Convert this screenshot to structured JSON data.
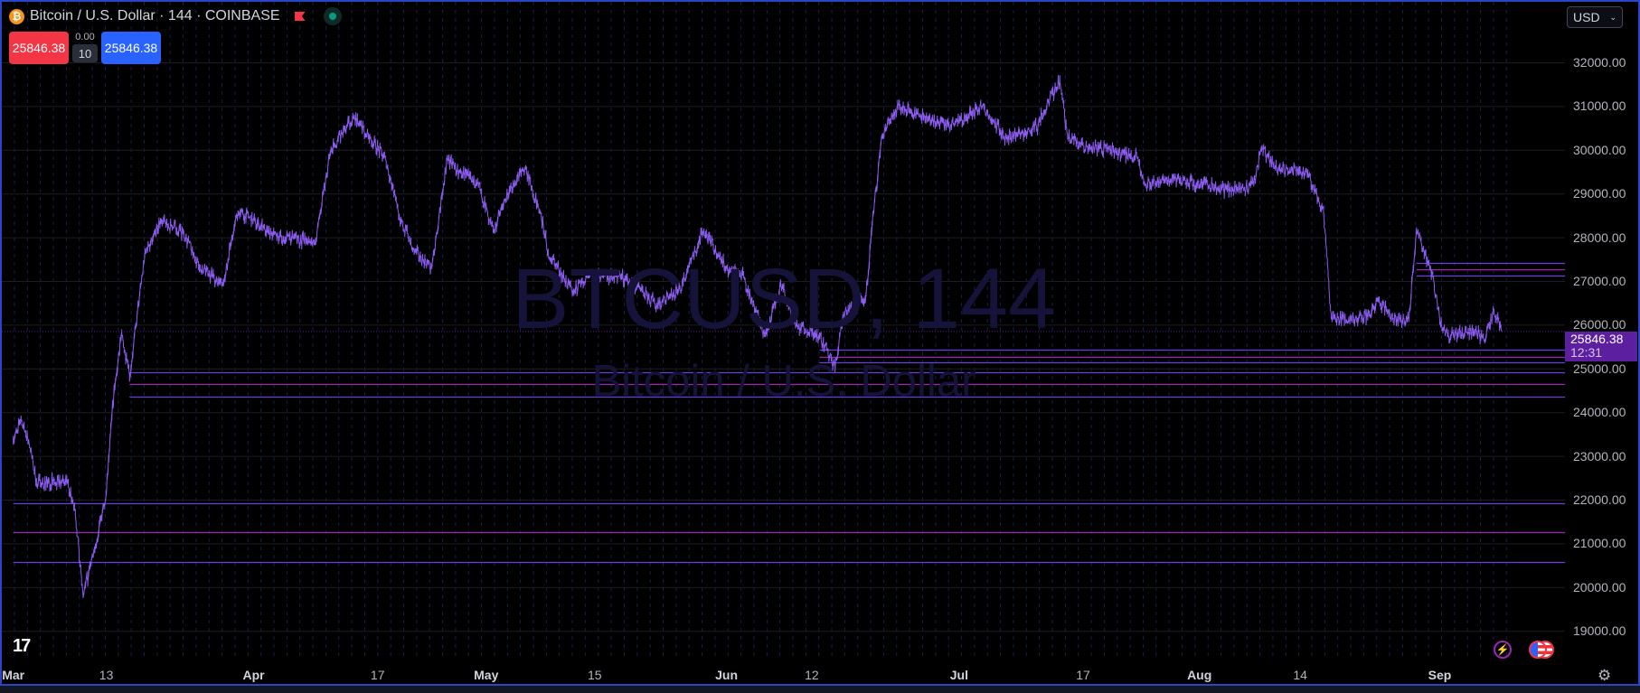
{
  "header": {
    "title": "Bitcoin / U.S. Dollar · 144 · COINBASE",
    "coin_icon": "bitcoin-icon",
    "flag_icon": "flag-icon",
    "status_icon": "market-open-dot-icon"
  },
  "trade": {
    "sell_price": "25846.38",
    "spread": "0.00",
    "quantity": "10",
    "buy_price": "25846.38"
  },
  "currency_selector": {
    "value": "USD"
  },
  "watermark": {
    "symbol": "BTCUSD, 144",
    "description": "Bitcoin / U.S. Dollar"
  },
  "last_price_tag": {
    "price": "25846.38",
    "countdown": "12:31"
  },
  "colors": {
    "line": "#8c5cf0",
    "level_purple": "#6a3fe0",
    "level_magenta": "#9c27b0",
    "background": "#000000",
    "border": "#2846c8",
    "tag": "#5b1f9f"
  },
  "chart_data": {
    "type": "line",
    "symbol": "BTCUSD",
    "interval": "144",
    "ylim": [
      18500,
      32500
    ],
    "y_ticks": [
      "32000.00",
      "31000.00",
      "30000.00",
      "29000.00",
      "28000.00",
      "27000.00",
      "26000.00",
      "25000.00",
      "24000.00",
      "23000.00",
      "22000.00",
      "21000.00",
      "20000.00",
      "19000.00"
    ],
    "x_ticks": [
      {
        "label": "Mar",
        "date": "03-01",
        "month": true
      },
      {
        "label": "13",
        "date": "03-13"
      },
      {
        "label": "Apr",
        "date": "04-01",
        "month": true
      },
      {
        "label": "17",
        "date": "04-17"
      },
      {
        "label": "May",
        "date": "05-01",
        "month": true
      },
      {
        "label": "15",
        "date": "05-15"
      },
      {
        "label": "Jun",
        "date": "06-01",
        "month": true
      },
      {
        "label": "12",
        "date": "06-12"
      },
      {
        "label": "Jul",
        "date": "07-01",
        "month": true
      },
      {
        "label": "17",
        "date": "07-17"
      },
      {
        "label": "Aug",
        "date": "08-01",
        "month": true
      },
      {
        "label": "14",
        "date": "08-14"
      },
      {
        "label": "Sep",
        "date": "09-01",
        "month": true
      }
    ],
    "grid": true,
    "points": [
      [
        "03-01",
        23350
      ],
      [
        "03-02",
        23830
      ],
      [
        "03-03",
        23350
      ],
      [
        "03-04",
        22400
      ],
      [
        "03-08",
        22400
      ],
      [
        "03-09",
        21680
      ],
      [
        "03-10",
        19770
      ],
      [
        "03-11",
        20500
      ],
      [
        "03-13",
        22150
      ],
      [
        "03-14",
        24540
      ],
      [
        "03-15",
        25800
      ],
      [
        "03-16",
        24800
      ],
      [
        "03-18",
        27650
      ],
      [
        "03-20",
        28370
      ],
      [
        "03-23",
        28100
      ],
      [
        "03-25",
        27300
      ],
      [
        "03-28",
        26930
      ],
      [
        "03-30",
        28600
      ],
      [
        "04-02",
        28250
      ],
      [
        "04-04",
        28000
      ],
      [
        "04-09",
        27900
      ],
      [
        "04-11",
        30040
      ],
      [
        "04-14",
        30760
      ],
      [
        "04-16",
        30280
      ],
      [
        "04-18",
        29800
      ],
      [
        "04-20",
        28370
      ],
      [
        "04-22",
        27650
      ],
      [
        "04-24",
        27300
      ],
      [
        "04-26",
        29800
      ],
      [
        "04-28",
        29450
      ],
      [
        "04-30",
        29200
      ],
      [
        "05-02",
        28130
      ],
      [
        "05-04",
        29100
      ],
      [
        "05-06",
        29570
      ],
      [
        "05-08",
        28600
      ],
      [
        "05-09",
        27650
      ],
      [
        "05-12",
        26800
      ],
      [
        "05-15",
        27170
      ],
      [
        "05-19",
        27050
      ],
      [
        "05-23",
        26460
      ],
      [
        "05-26",
        26810
      ],
      [
        "05-29",
        28130
      ],
      [
        "06-01",
        27300
      ],
      [
        "06-03",
        27170
      ],
      [
        "06-06",
        25740
      ],
      [
        "06-08",
        26930
      ],
      [
        "06-10",
        25980
      ],
      [
        "06-13",
        25740
      ],
      [
        "06-15",
        25020
      ],
      [
        "06-16",
        26220
      ],
      [
        "06-19",
        26690
      ],
      [
        "06-20",
        28600
      ],
      [
        "06-21",
        30280
      ],
      [
        "06-23",
        31000
      ],
      [
        "06-26",
        30760
      ],
      [
        "06-30",
        30520
      ],
      [
        "07-04",
        31000
      ],
      [
        "07-07",
        30280
      ],
      [
        "07-11",
        30520
      ],
      [
        "07-14",
        31600
      ],
      [
        "07-15",
        30280
      ],
      [
        "07-18",
        30040
      ],
      [
        "07-20",
        30040
      ],
      [
        "07-24",
        29800
      ],
      [
        "07-25",
        29200
      ],
      [
        "07-28",
        29330
      ],
      [
        "08-01",
        29200
      ],
      [
        "08-05",
        29090
      ],
      [
        "08-08",
        29200
      ],
      [
        "08-09",
        30040
      ],
      [
        "08-11",
        29570
      ],
      [
        "08-15",
        29450
      ],
      [
        "08-17",
        28600
      ],
      [
        "08-18",
        26200
      ],
      [
        "08-20",
        26100
      ],
      [
        "08-23",
        26220
      ],
      [
        "08-24",
        26580
      ],
      [
        "08-26",
        26100
      ],
      [
        "08-28",
        26100
      ],
      [
        "08-29",
        28130
      ],
      [
        "08-31",
        27170
      ],
      [
        "09-01",
        26100
      ],
      [
        "09-02",
        25740
      ],
      [
        "09-05",
        25860
      ],
      [
        "09-07",
        25740
      ],
      [
        "09-08",
        26340
      ],
      [
        "09-09",
        25846.38
      ]
    ],
    "levels": [
      {
        "price": 27412,
        "from": "08-29",
        "color": "#6a3fe0"
      },
      {
        "price": 27269,
        "from": "08-29",
        "color": "#9c27b0"
      },
      {
        "price": 27125,
        "from": "08-29",
        "color": "#6a3fe0"
      },
      {
        "price": 25429,
        "from": "06-13",
        "color": "#6a3fe0"
      },
      {
        "price": 25262,
        "from": "06-13",
        "color": "#9c27b0"
      },
      {
        "price": 25142,
        "from": "06-13",
        "color": "#6a3fe0"
      },
      {
        "price": 24903,
        "from": "03-16",
        "color": "#6a3fe0"
      },
      {
        "price": 24640,
        "from": "03-16",
        "color": "#9c27b0"
      },
      {
        "price": 24354,
        "from": "03-16",
        "color": "#6a3fe0"
      },
      {
        "price": 21916,
        "from": "03-01",
        "color": "#6a3fe0"
      },
      {
        "price": 21247,
        "from": "03-01",
        "color": "#9c27b0"
      },
      {
        "price": 20578,
        "from": "03-01",
        "color": "#6a3fe0"
      }
    ]
  },
  "bottom_icons": {
    "lightning": "lightning-icon",
    "flags": "us-flag-icon",
    "settings": "gear-icon"
  }
}
